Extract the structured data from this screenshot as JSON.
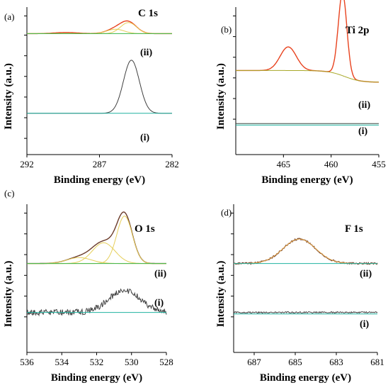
{
  "chart_data": [
    {
      "type": "line",
      "panel": "(a)",
      "title": "C 1s",
      "xlabel": "Binding energy (eV)",
      "ylabel": "Intensity (a.u.)",
      "xlim": [
        292,
        282
      ],
      "x_reversed": true,
      "xticks": [
        292,
        287,
        282
      ],
      "grid": false,
      "curves": [
        {
          "label": "(ii)",
          "kind": "envelope",
          "color": "#e8421e",
          "baseline": 0.18,
          "peaks": [
            {
              "c": 285.0,
              "a": 0.075,
              "w": 0.55
            },
            {
              "c": 285.9,
              "a": 0.03,
              "w": 0.6
            },
            {
              "c": 289.3,
              "a": 0.008,
              "w": 0.8
            }
          ]
        },
        {
          "kind": "component",
          "color": "#e6cf5a",
          "baseline": 0.18,
          "peaks": [
            {
              "c": 285.0,
              "a": 0.075,
              "w": 0.55
            }
          ]
        },
        {
          "kind": "component",
          "color": "#e6cf5a",
          "baseline": 0.18,
          "peaks": [
            {
              "c": 285.9,
              "a": 0.03,
              "w": 0.6
            }
          ]
        },
        {
          "kind": "background",
          "color": "#39b54a",
          "baseline": 0.18,
          "peaks": []
        },
        {
          "label": "(i)",
          "kind": "raw",
          "color": "#404040",
          "baseline": 0.72,
          "peaks": [
            {
              "c": 284.8,
              "a": 0.36,
              "w": 0.55
            }
          ]
        },
        {
          "kind": "background",
          "color": "#20b2a0",
          "baseline": 0.72,
          "peaks": []
        }
      ]
    },
    {
      "type": "line",
      "panel": "(b)",
      "title": "Ti 2p",
      "xlabel": "Binding energy (eV)",
      "ylabel": "Intensity (a.u.)",
      "xlim": [
        470,
        455
      ],
      "x_reversed": true,
      "xticks": [
        465,
        460,
        455
      ],
      "grid": false,
      "curves": [
        {
          "label": "(ii)",
          "kind": "envelope",
          "color": "#e8421e",
          "background": "#a8a828",
          "bg_left": 0.43,
          "bg_right": 0.51,
          "bg_step": 458.6,
          "peaks": [
            {
              "c": 464.5,
              "a": 0.16,
              "w": 0.85
            },
            {
              "c": 458.8,
              "a": 0.56,
              "w": 0.45
            }
          ]
        },
        {
          "label": "(i)",
          "kind": "raw",
          "color": "#3a4a44",
          "baseline": 0.79,
          "peaks": []
        },
        {
          "kind": "background",
          "color": "#20b2a0",
          "baseline": 0.8,
          "peaks": []
        }
      ]
    },
    {
      "type": "line",
      "panel": "(c)",
      "title": "O 1s",
      "xlabel": "Binding energy (eV)",
      "ylabel": "Intensity (a.u.)",
      "xlim": [
        536,
        528
      ],
      "x_reversed": true,
      "xticks": [
        536,
        534,
        532,
        530,
        528
      ],
      "grid": false,
      "curves": [
        {
          "label": "(ii)",
          "kind": "envelope",
          "color": "#6b3b2a",
          "baseline": 0.4,
          "peaks": [
            {
              "c": 530.4,
              "a": 0.32,
              "w": 0.45
            },
            {
              "c": 531.6,
              "a": 0.14,
              "w": 0.65
            },
            {
              "c": 533.0,
              "a": 0.04,
              "w": 0.7
            }
          ]
        },
        {
          "kind": "component",
          "color": "#e6cf5a",
          "baseline": 0.4,
          "peaks": [
            {
              "c": 530.4,
              "a": 0.32,
              "w": 0.45
            }
          ]
        },
        {
          "kind": "component",
          "color": "#e6cf5a",
          "baseline": 0.4,
          "peaks": [
            {
              "c": 531.6,
              "a": 0.14,
              "w": 0.65
            }
          ]
        },
        {
          "kind": "component",
          "color": "#e6cf5a",
          "baseline": 0.4,
          "peaks": [
            {
              "c": 533.0,
              "a": 0.04,
              "w": 0.7
            }
          ]
        },
        {
          "kind": "background",
          "color": "#39b54a",
          "baseline": 0.4,
          "peaks": []
        },
        {
          "label": "(i)",
          "kind": "raw",
          "color": "#404040",
          "baseline": 0.73,
          "noise": 0.02,
          "peaks": [
            {
              "c": 530.4,
              "a": 0.15,
              "w": 0.9
            }
          ]
        },
        {
          "kind": "background",
          "color": "#20b2a0",
          "baseline": 0.73,
          "peaks": []
        }
      ]
    },
    {
      "type": "line",
      "panel": "(d)",
      "title": "F 1s",
      "xlabel": "Binding energy (eV)",
      "ylabel": "Intensity (a.u.)",
      "xlim": [
        688,
        681
      ],
      "x_reversed": true,
      "xticks": [
        687,
        685,
        683,
        681
      ],
      "grid": false,
      "curves": [
        {
          "label": "(ii)",
          "kind": "envelope",
          "color": "#6b3b2a",
          "baseline": 0.4,
          "noise": 0.005,
          "peaks": [
            {
              "c": 684.8,
              "a": 0.165,
              "w": 0.8
            }
          ]
        },
        {
          "kind": "component",
          "color": "#e6a84a",
          "baseline": 0.4,
          "peaks": [
            {
              "c": 684.8,
              "a": 0.165,
              "w": 0.8
            }
          ]
        },
        {
          "kind": "background",
          "color": "#20b2a0",
          "baseline": 0.4,
          "peaks": []
        },
        {
          "label": "(i)",
          "kind": "raw",
          "color": "#404040",
          "baseline": 0.73,
          "noise": 0.005,
          "peaks": []
        },
        {
          "kind": "background",
          "color": "#20b2a0",
          "baseline": 0.74,
          "peaks": []
        }
      ]
    }
  ]
}
